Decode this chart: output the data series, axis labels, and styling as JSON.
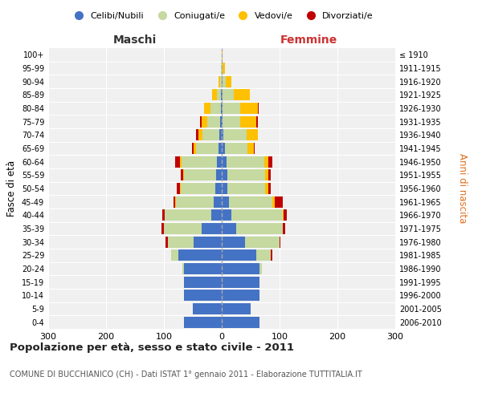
{
  "age_groups": [
    "0-4",
    "5-9",
    "10-14",
    "15-19",
    "20-24",
    "25-29",
    "30-34",
    "35-39",
    "40-44",
    "45-49",
    "50-54",
    "55-59",
    "60-64",
    "65-69",
    "70-74",
    "75-79",
    "80-84",
    "85-89",
    "90-94",
    "95-99",
    "100+"
  ],
  "birth_years": [
    "2006-2010",
    "2001-2005",
    "1996-2000",
    "1991-1995",
    "1986-1990",
    "1981-1985",
    "1976-1980",
    "1971-1975",
    "1966-1970",
    "1961-1965",
    "1956-1960",
    "1951-1955",
    "1946-1950",
    "1941-1945",
    "1936-1940",
    "1931-1935",
    "1926-1930",
    "1921-1925",
    "1916-1920",
    "1911-1915",
    "≤ 1910"
  ],
  "colors": {
    "celibi": "#4472c4",
    "coniugati": "#c5d9a0",
    "vedovi": "#ffc000",
    "divorziati": "#c00000"
  },
  "males": {
    "celibi": [
      65,
      50,
      65,
      65,
      65,
      75,
      48,
      35,
      18,
      14,
      11,
      10,
      9,
      6,
      4,
      3,
      2,
      1,
      0,
      0,
      0
    ],
    "coniugati": [
      0,
      0,
      0,
      0,
      3,
      12,
      45,
      65,
      80,
      65,
      60,
      55,
      60,
      38,
      30,
      22,
      18,
      8,
      3,
      1,
      0
    ],
    "vedovi": [
      0,
      0,
      0,
      0,
      0,
      0,
      0,
      0,
      1,
      1,
      1,
      2,
      3,
      5,
      6,
      10,
      10,
      8,
      2,
      1,
      0
    ],
    "divorziati": [
      0,
      0,
      0,
      0,
      0,
      0,
      4,
      4,
      4,
      4,
      6,
      4,
      8,
      2,
      4,
      2,
      0,
      0,
      0,
      0,
      0
    ]
  },
  "females": {
    "celibi": [
      65,
      50,
      65,
      65,
      65,
      60,
      40,
      25,
      16,
      13,
      10,
      10,
      8,
      5,
      3,
      2,
      2,
      1,
      2,
      0,
      0
    ],
    "coniugati": [
      0,
      0,
      0,
      0,
      5,
      25,
      60,
      80,
      90,
      75,
      65,
      65,
      65,
      40,
      40,
      30,
      30,
      20,
      5,
      2,
      0
    ],
    "vedovi": [
      0,
      0,
      0,
      0,
      0,
      0,
      0,
      0,
      1,
      3,
      5,
      5,
      8,
      10,
      20,
      28,
      30,
      28,
      10,
      4,
      1
    ],
    "divorziati": [
      0,
      0,
      0,
      0,
      0,
      2,
      2,
      5,
      5,
      15,
      5,
      5,
      6,
      2,
      0,
      2,
      2,
      0,
      0,
      0,
      0
    ]
  },
  "title": "Popolazione per età, sesso e stato civile - 2011",
  "subtitle": "COMUNE DI BUCCHIANICO (CH) - Dati ISTAT 1° gennaio 2011 - Elaborazione TUTTITALIA.IT",
  "xlabel_left": "Maschi",
  "xlabel_right": "Femmine",
  "ylabel_left": "Fasce di età",
  "ylabel_right": "Anni di nascita",
  "xlim": 300,
  "legend_labels": [
    "Celibi/Nubili",
    "Coniugati/e",
    "Vedovi/e",
    "Divorziati/e"
  ],
  "bg_color": "#f0f0f0",
  "grid_color": "#cccccc"
}
